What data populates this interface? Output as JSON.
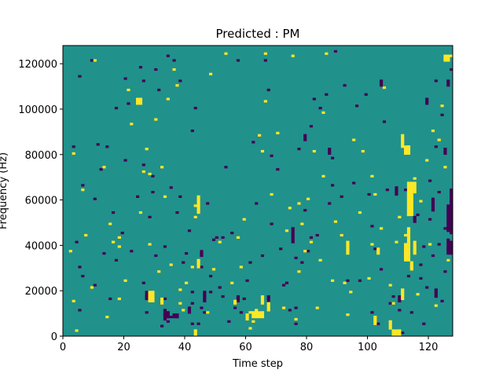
{
  "chart_data": {
    "type": "heatmap",
    "title": "Predicted : PM",
    "xlabel": "Time step",
    "ylabel": "Frequency (Hz)",
    "xlim": [
      0,
      128
    ],
    "ylim": [
      0,
      128000
    ],
    "x_ticks": [
      0,
      20,
      40,
      60,
      80,
      100,
      120
    ],
    "y_ticks": [
      0,
      20000,
      40000,
      60000,
      80000,
      100000,
      120000
    ],
    "x_tick_labels": [
      "0",
      "20",
      "40",
      "60",
      "80",
      "100",
      "120"
    ],
    "y_tick_labels": [
      "0",
      "20000",
      "40000",
      "60000",
      "80000",
      "100000",
      "120000"
    ],
    "n_time_steps": 128,
    "n_freq_bins": 128,
    "bin_height_hz": 1000,
    "background_value": 0,
    "value_range": [
      -1,
      1
    ],
    "colormap": {
      "-1": "#440154",
      "0": "#21918c",
      "1": "#fde725"
    },
    "cells_low": [
      [
        3,
        83
      ],
      [
        4,
        41
      ],
      [
        5,
        11
      ],
      [
        5,
        30
      ],
      [
        5,
        114
      ],
      [
        6,
        26
      ],
      [
        6,
        66
      ],
      [
        9,
        121
      ],
      [
        10,
        60
      ],
      [
        10,
        22
      ],
      [
        11,
        84
      ],
      [
        12,
        73
      ],
      [
        13,
        36
      ],
      [
        14,
        83
      ],
      [
        15,
        16
      ],
      [
        16,
        54
      ],
      [
        17,
        100
      ],
      [
        17,
        33
      ],
      [
        19,
        45
      ],
      [
        20,
        77
      ],
      [
        20,
        113
      ],
      [
        21,
        102
      ],
      [
        22,
        37
      ],
      [
        24,
        61
      ],
      [
        25,
        118
      ],
      [
        26,
        112
      ],
      [
        26,
        75
      ],
      [
        26,
        23
      ],
      [
        27,
        17
      ],
      [
        27,
        16
      ],
      [
        27,
        10
      ],
      [
        28,
        52
      ],
      [
        29,
        63
      ],
      [
        29,
        70
      ],
      [
        30,
        117
      ],
      [
        30,
        35
      ],
      [
        31,
        108
      ],
      [
        32,
        4
      ],
      [
        32,
        14
      ],
      [
        33,
        16
      ],
      [
        33,
        39
      ],
      [
        33,
        11
      ],
      [
        34,
        8
      ],
      [
        34,
        6
      ],
      [
        34,
        123
      ],
      [
        35,
        8
      ],
      [
        35,
        65
      ],
      [
        36,
        121
      ],
      [
        37,
        8
      ],
      [
        37,
        54
      ],
      [
        38,
        112
      ],
      [
        38,
        61
      ],
      [
        39,
        32
      ],
      [
        40,
        36
      ],
      [
        41,
        46
      ],
      [
        42,
        5
      ],
      [
        42,
        19
      ],
      [
        42,
        14
      ],
      [
        42,
        90
      ],
      [
        43,
        100
      ],
      [
        44,
        5
      ],
      [
        45,
        12
      ],
      [
        45,
        30
      ],
      [
        46,
        10
      ],
      [
        47,
        58
      ],
      [
        48,
        26
      ],
      [
        48,
        19
      ],
      [
        49,
        42
      ],
      [
        50,
        43
      ],
      [
        51,
        21
      ],
      [
        52,
        43
      ],
      [
        52,
        17
      ],
      [
        53,
        74
      ],
      [
        54,
        6
      ],
      [
        55,
        45
      ],
      [
        56,
        12
      ],
      [
        57,
        121
      ],
      [
        58,
        10
      ],
      [
        59,
        16
      ],
      [
        60,
        24
      ],
      [
        61,
        32
      ],
      [
        62,
        85
      ],
      [
        63,
        58
      ],
      [
        64,
        10
      ],
      [
        65,
        35
      ],
      [
        66,
        121
      ],
      [
        67,
        108
      ],
      [
        68,
        49
      ],
      [
        68,
        79
      ],
      [
        70,
        73
      ],
      [
        71,
        38
      ],
      [
        72,
        22
      ],
      [
        73,
        23
      ],
      [
        74,
        11
      ],
      [
        75,
        47
      ],
      [
        76,
        34
      ],
      [
        76,
        5
      ],
      [
        76,
        12
      ],
      [
        77,
        82
      ],
      [
        78,
        32
      ],
      [
        79,
        55
      ],
      [
        80,
        37
      ],
      [
        81,
        92
      ],
      [
        81,
        43
      ],
      [
        82,
        104
      ],
      [
        83,
        44
      ],
      [
        84,
        100
      ],
      [
        86,
        106
      ],
      [
        87,
        58
      ],
      [
        88,
        78
      ],
      [
        88,
        66
      ],
      [
        89,
        125
      ],
      [
        91,
        61
      ],
      [
        92,
        110
      ],
      [
        93,
        24
      ],
      [
        95,
        67
      ],
      [
        96,
        101
      ],
      [
        97,
        24
      ],
      [
        99,
        106
      ],
      [
        100,
        62
      ],
      [
        101,
        48
      ],
      [
        101,
        10
      ],
      [
        102,
        38
      ],
      [
        103,
        5
      ],
      [
        104,
        29
      ],
      [
        105,
        94
      ],
      [
        106,
        64
      ],
      [
        107,
        14
      ],
      [
        108,
        17
      ],
      [
        109,
        2
      ],
      [
        110,
        11
      ],
      [
        111,
        1
      ],
      [
        112,
        64
      ],
      [
        113,
        26
      ],
      [
        114,
        10
      ],
      [
        115,
        40
      ],
      [
        116,
        53
      ],
      [
        117,
        31
      ],
      [
        117,
        25
      ],
      [
        118,
        39
      ],
      [
        118,
        5
      ],
      [
        119,
        21
      ],
      [
        120,
        68
      ],
      [
        120,
        51
      ],
      [
        121,
        35
      ],
      [
        122,
        112
      ],
      [
        122,
        83
      ],
      [
        123,
        63
      ],
      [
        123,
        40
      ],
      [
        124,
        97
      ],
      [
        124,
        15
      ],
      [
        125,
        47
      ],
      [
        125,
        28
      ],
      [
        126,
        42
      ],
      [
        126,
        38
      ],
      [
        126,
        33
      ],
      [
        127,
        45
      ],
      [
        127,
        50
      ],
      [
        127,
        56
      ],
      [
        127,
        36
      ],
      [
        127,
        117
      ]
    ],
    "cells_high": [
      [
        2,
        37
      ],
      [
        3,
        15
      ],
      [
        3,
        80
      ],
      [
        4,
        2
      ],
      [
        6,
        64
      ],
      [
        7,
        44
      ],
      [
        9,
        21
      ],
      [
        10,
        121
      ],
      [
        13,
        74
      ],
      [
        14,
        8
      ],
      [
        15,
        49
      ],
      [
        16,
        41
      ],
      [
        18,
        39
      ],
      [
        18,
        43
      ],
      [
        18,
        16
      ],
      [
        20,
        24
      ],
      [
        21,
        108
      ],
      [
        22,
        93
      ],
      [
        25,
        54
      ],
      [
        26,
        72
      ],
      [
        27,
        82
      ],
      [
        28,
        71
      ],
      [
        28,
        40
      ],
      [
        30,
        95
      ],
      [
        31,
        28
      ],
      [
        32,
        74
      ],
      [
        33,
        8
      ],
      [
        33,
        61
      ],
      [
        34,
        104
      ],
      [
        35,
        31
      ],
      [
        36,
        117
      ],
      [
        37,
        110
      ],
      [
        38,
        14
      ],
      [
        38,
        20
      ],
      [
        39,
        11
      ],
      [
        40,
        23
      ],
      [
        42,
        30
      ],
      [
        43,
        52
      ],
      [
        43,
        57
      ],
      [
        45,
        37
      ],
      [
        47,
        10
      ],
      [
        48,
        115
      ],
      [
        49,
        29
      ],
      [
        51,
        41
      ],
      [
        53,
        124
      ],
      [
        55,
        23
      ],
      [
        57,
        43
      ],
      [
        58,
        30
      ],
      [
        59,
        51
      ],
      [
        61,
        3
      ],
      [
        61,
        10
      ],
      [
        62,
        6
      ],
      [
        63,
        11
      ],
      [
        64,
        88
      ],
      [
        65,
        81
      ],
      [
        66,
        124
      ],
      [
        66,
        103
      ],
      [
        67,
        15
      ],
      [
        68,
        62
      ],
      [
        70,
        89
      ],
      [
        72,
        12
      ],
      [
        73,
        46
      ],
      [
        74,
        56
      ],
      [
        75,
        123
      ],
      [
        76,
        7
      ],
      [
        77,
        58
      ],
      [
        77,
        28
      ],
      [
        78,
        49
      ],
      [
        79,
        37
      ],
      [
        80,
        60
      ],
      [
        81,
        41
      ],
      [
        82,
        81
      ],
      [
        83,
        12
      ],
      [
        84,
        33
      ],
      [
        85,
        98
      ],
      [
        85,
        70
      ],
      [
        86,
        124
      ],
      [
        88,
        24
      ],
      [
        89,
        50
      ],
      [
        91,
        44
      ],
      [
        92,
        23
      ],
      [
        93,
        9
      ],
      [
        94,
        19
      ],
      [
        95,
        86
      ],
      [
        97,
        54
      ],
      [
        98,
        81
      ],
      [
        100,
        25
      ],
      [
        101,
        40
      ],
      [
        101,
        70
      ],
      [
        102,
        62
      ],
      [
        104,
        47
      ],
      [
        105,
        109
      ],
      [
        107,
        22
      ],
      [
        108,
        14
      ],
      [
        109,
        41
      ],
      [
        110,
        52
      ],
      [
        112,
        44
      ],
      [
        113,
        83
      ],
      [
        114,
        30
      ],
      [
        115,
        69
      ],
      [
        116,
        18
      ],
      [
        117,
        59
      ],
      [
        119,
        77
      ],
      [
        120,
        40
      ],
      [
        121,
        90
      ],
      [
        122,
        13
      ],
      [
        123,
        86
      ],
      [
        124,
        101
      ],
      [
        125,
        74
      ],
      [
        126,
        33
      ],
      [
        127,
        123
      ]
    ],
    "segments_low": [
      [
        28,
        16,
        2
      ],
      [
        33,
        7,
        3
      ],
      [
        41,
        10,
        3
      ],
      [
        45,
        35,
        3
      ],
      [
        46,
        15,
        5
      ],
      [
        57,
        15,
        3
      ],
      [
        67,
        15,
        3
      ],
      [
        75,
        41,
        6
      ],
      [
        79,
        86,
        3
      ],
      [
        87,
        80,
        3
      ],
      [
        104,
        110,
        3
      ],
      [
        109,
        62,
        4
      ],
      [
        110,
        15,
        3
      ],
      [
        115,
        50,
        3
      ],
      [
        119,
        102,
        3
      ],
      [
        121,
        55,
        6
      ],
      [
        122,
        17,
        4
      ],
      [
        125,
        80,
        3
      ],
      [
        126,
        110,
        3
      ],
      [
        127,
        57,
        8
      ]
    ],
    "segments_high": [
      [
        28,
        16,
        3
      ],
      [
        32,
        14,
        3
      ],
      [
        43,
        0,
        3
      ],
      [
        44,
        54,
        8
      ],
      [
        44,
        30,
        4
      ],
      [
        56,
        14,
        2
      ],
      [
        60,
        7,
        3
      ],
      [
        65,
        14,
        4
      ],
      [
        67,
        11,
        4
      ],
      [
        93,
        36,
        6
      ],
      [
        102,
        5,
        4
      ],
      [
        103,
        36,
        3
      ],
      [
        107,
        3,
        4
      ],
      [
        111,
        16,
        5
      ],
      [
        111,
        83,
        6
      ],
      [
        113,
        40,
        8
      ],
      [
        113,
        53,
        10
      ],
      [
        114,
        29,
        4
      ],
      [
        115,
        36,
        6
      ],
      [
        126,
        121,
        2
      ]
    ],
    "blocks_low": [
      [
        27,
        16,
        2,
        4
      ],
      [
        33,
        8,
        2,
        3
      ],
      [
        36,
        8,
        2,
        2
      ],
      [
        126,
        46,
        2,
        12
      ],
      [
        127,
        52,
        1,
        8
      ],
      [
        126,
        36,
        2,
        6
      ]
    ],
    "blocks_high": [
      [
        24,
        102,
        2,
        3
      ],
      [
        28,
        15,
        2,
        5
      ],
      [
        62,
        8,
        4,
        3
      ],
      [
        108,
        0,
        3,
        3
      ],
      [
        112,
        33,
        2,
        8
      ],
      [
        113,
        53,
        2,
        10
      ],
      [
        112,
        80,
        2,
        4
      ],
      [
        113,
        63,
        3,
        5
      ],
      [
        125,
        121,
        2,
        3
      ]
    ]
  }
}
